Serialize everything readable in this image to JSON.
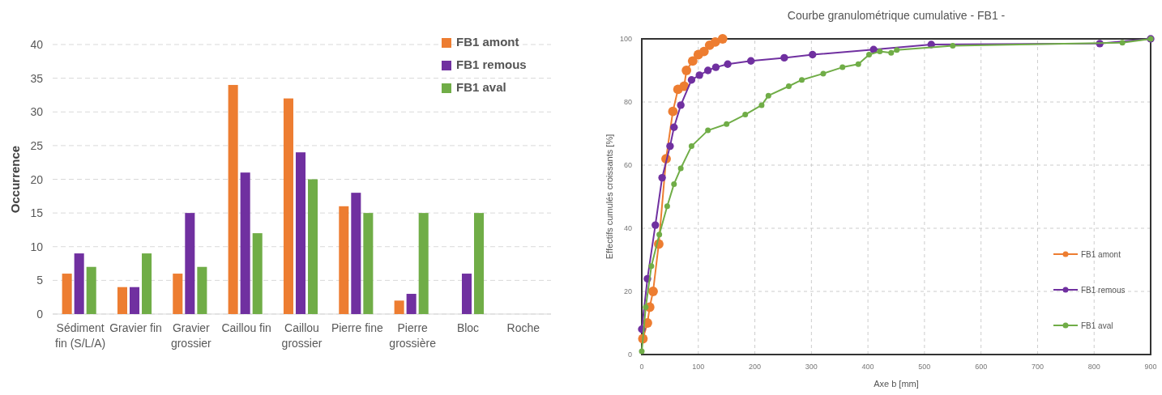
{
  "chart_data": [
    {
      "type": "bar",
      "ylabel": "Occurrence",
      "categories": [
        "Sédiment fin (S/L/A)",
        "Gravier fin",
        "Gravier grossier",
        "Caillou fin",
        "Caillou grossier",
        "Pierre fine",
        "Pierre grossière",
        "Bloc",
        "Roche"
      ],
      "series": [
        {
          "name": "FB1 amont",
          "color": "#ed7d31",
          "values": [
            6,
            4,
            6,
            34,
            32,
            16,
            2,
            0,
            0
          ]
        },
        {
          "name": "FB1 remous",
          "color": "#7030a0",
          "values": [
            9,
            4,
            15,
            21,
            24,
            18,
            3,
            6,
            0
          ]
        },
        {
          "name": "FB1 aval",
          "color": "#70ad47",
          "values": [
            7,
            9,
            7,
            12,
            20,
            15,
            15,
            15,
            0
          ]
        }
      ],
      "ylim": [
        0,
        40
      ],
      "yticks": [
        0,
        5,
        10,
        15,
        20,
        25,
        30,
        35,
        40
      ],
      "grid": "y",
      "legend": "top right"
    },
    {
      "type": "line",
      "title": "Courbe granulométrique cumulative - FB1 -",
      "xlabel": "Axe b [mm]",
      "ylabel": "Effectifs cumulés croissants [%]",
      "series": [
        {
          "name": "FB1 amont",
          "color": "#ed7d31",
          "x": [
            2,
            10,
            14,
            20,
            30,
            43,
            55,
            64,
            75,
            79,
            90,
            100,
            110,
            120,
            130,
            143
          ],
          "values": [
            5,
            10,
            15,
            20,
            35,
            62,
            77,
            84,
            85,
            90,
            93,
            95,
            96,
            98,
            99,
            100
          ]
        },
        {
          "name": "FB1 remous",
          "color": "#7030a0",
          "x": [
            0,
            10,
            24,
            36,
            50,
            57,
            69,
            88,
            102,
            117,
            131,
            152,
            193,
            252,
            302,
            410,
            512,
            810,
            900
          ],
          "values": [
            8,
            24,
            41,
            56,
            66,
            72,
            79,
            87,
            88.5,
            90,
            91,
            92,
            93,
            94,
            95,
            96.6,
            98.2,
            98.5,
            100
          ]
        },
        {
          "name": "FB1 aval",
          "color": "#70ad47",
          "x": [
            0,
            7,
            17,
            31,
            45,
            57,
            69,
            88,
            117,
            150,
            183,
            212,
            224,
            260,
            283,
            321,
            355,
            383,
            402,
            421,
            441,
            451,
            550,
            850,
            900
          ],
          "values": [
            1,
            15,
            28,
            38,
            47,
            54,
            59,
            66,
            71,
            73,
            76,
            79,
            82,
            85,
            87,
            89,
            91,
            92,
            95,
            96,
            95.6,
            96.5,
            97.8,
            98.8,
            100
          ]
        }
      ],
      "xlim": [
        0,
        900
      ],
      "xticks": [
        0,
        100,
        200,
        300,
        400,
        500,
        600,
        700,
        800,
        900
      ],
      "ylim": [
        0,
        100
      ],
      "yticks": [
        0,
        20,
        40,
        60,
        80,
        100
      ],
      "grid": true,
      "legend": "bottom right",
      "marker": "circle",
      "line_style": "solid"
    }
  ]
}
